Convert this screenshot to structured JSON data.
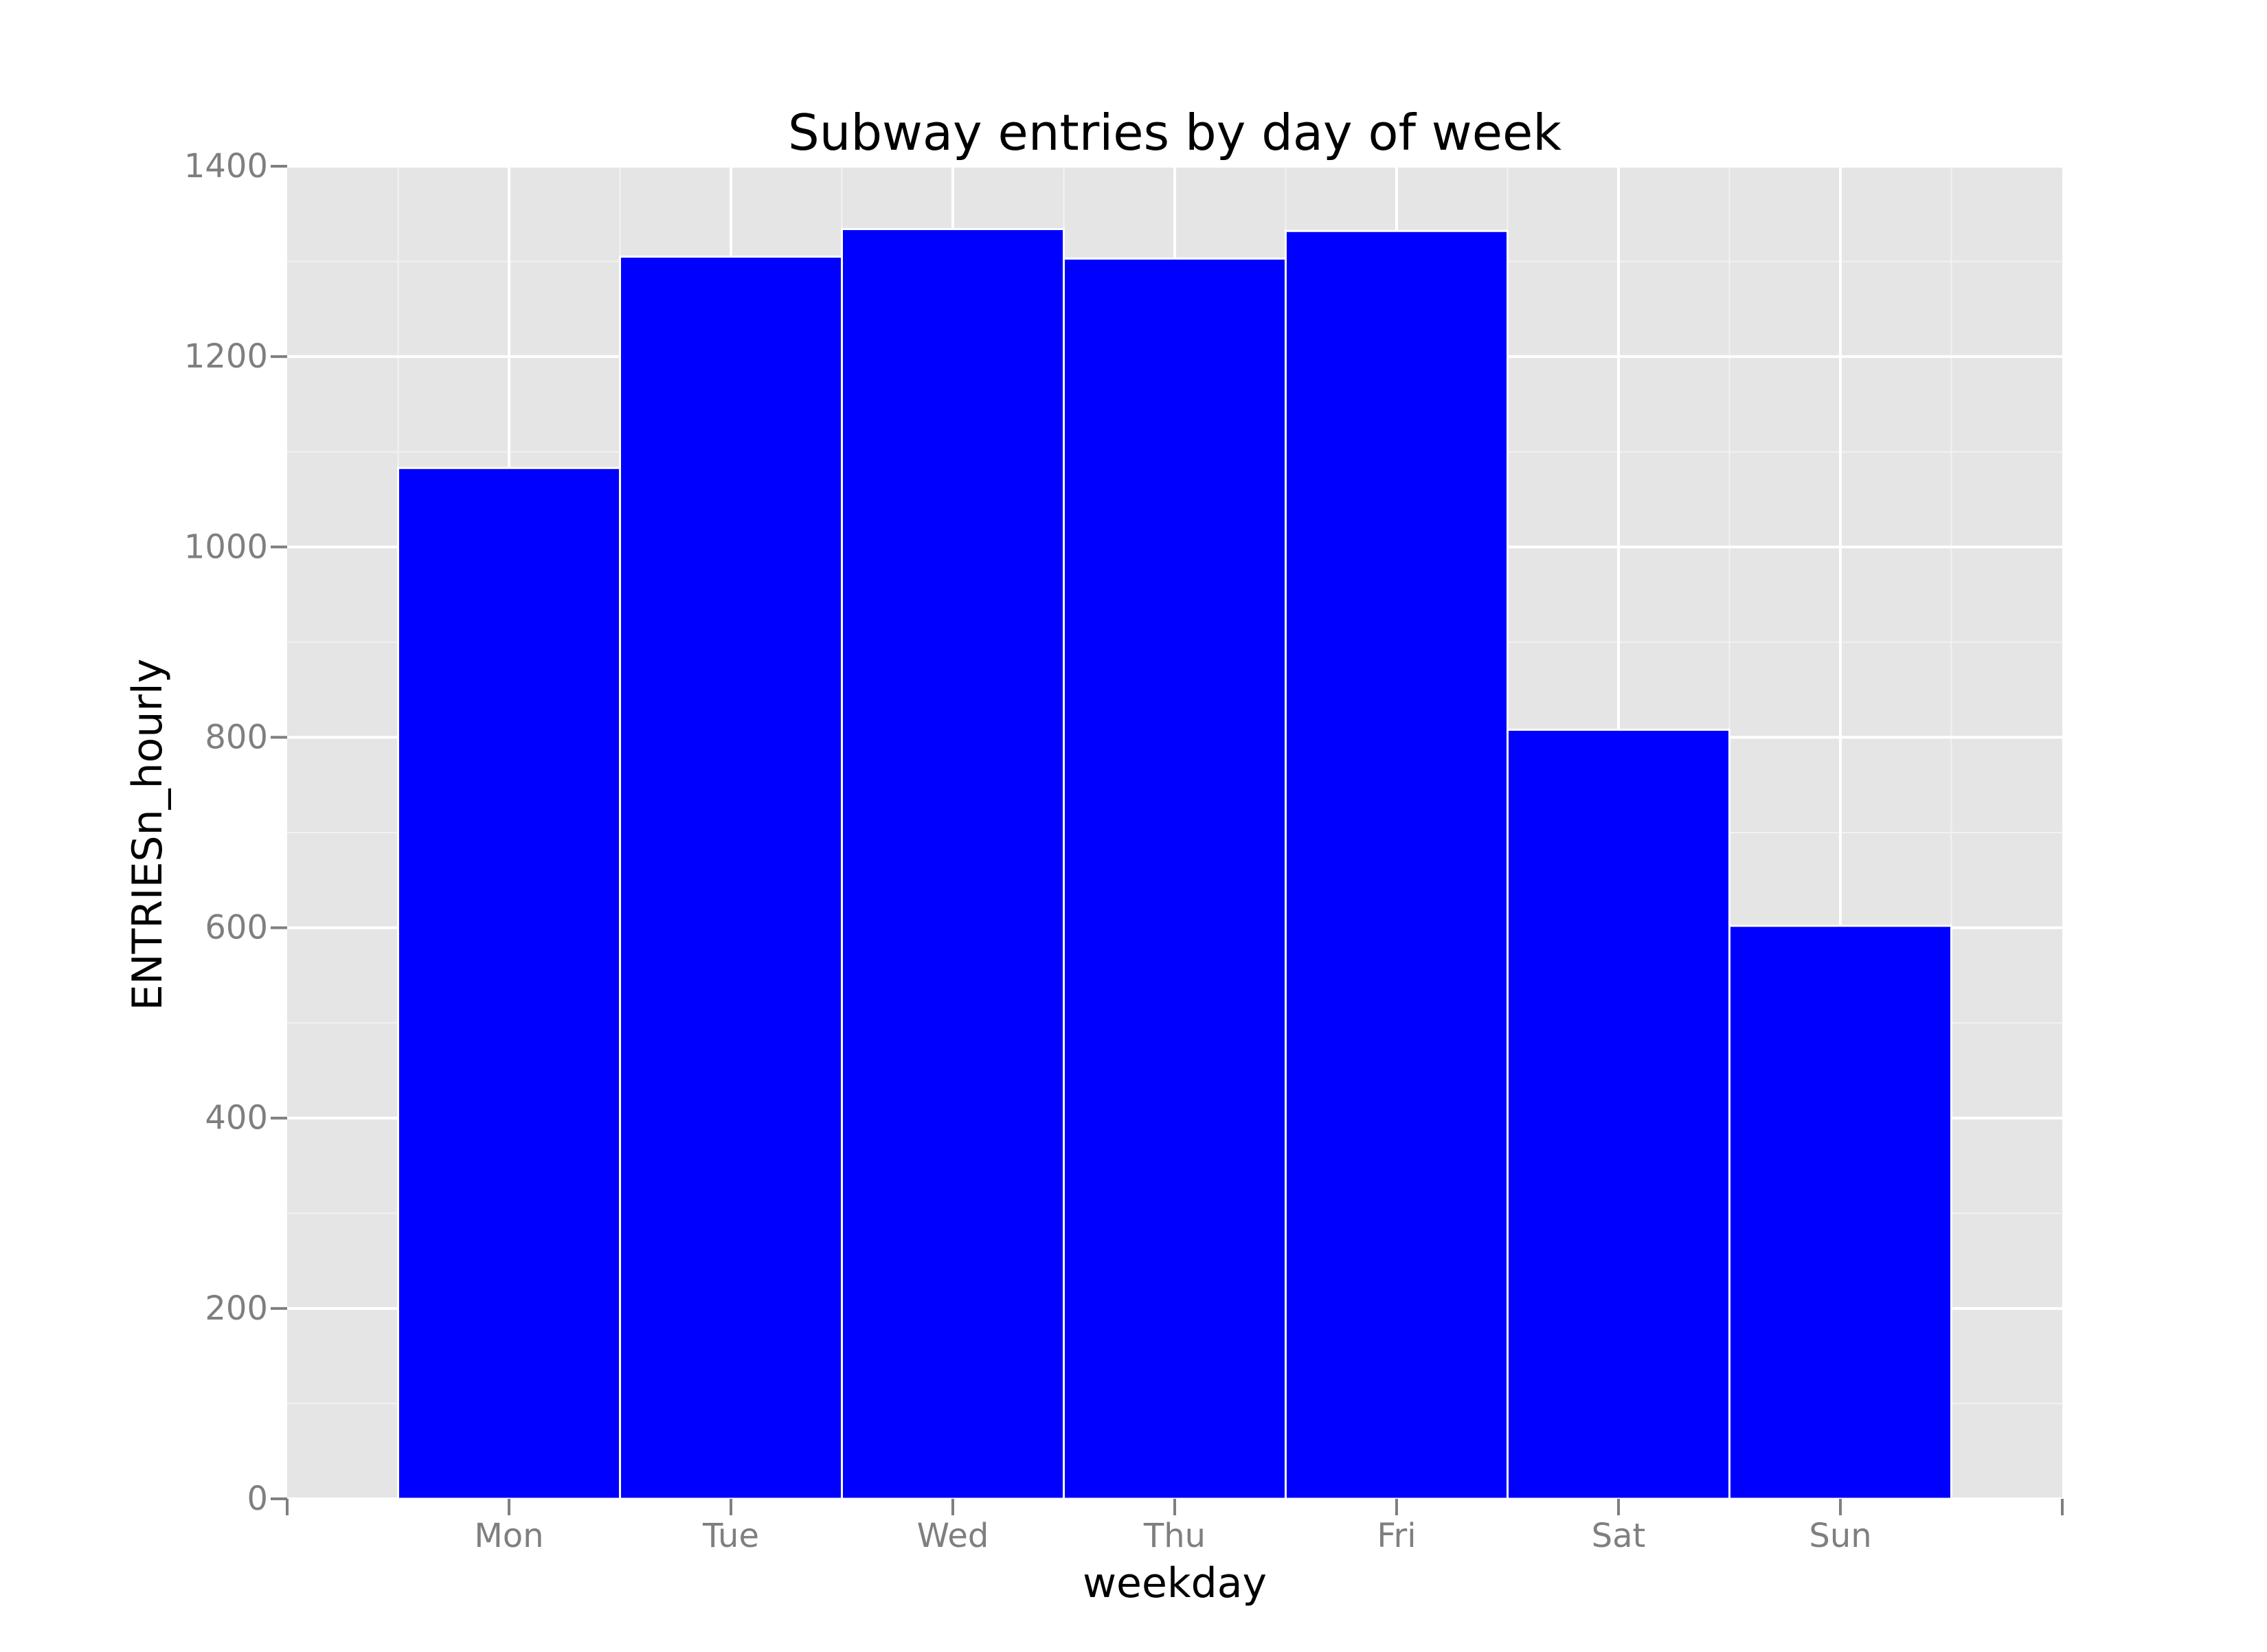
{
  "chart_data": {
    "type": "bar",
    "title": "Subway entries by day of week",
    "xlabel": "weekday",
    "ylabel": "ENTRIESn_hourly",
    "categories": [
      "Mon",
      "Tue",
      "Wed",
      "Thu",
      "Fri",
      "Sat",
      "Sun"
    ],
    "values": [
      1083,
      1305,
      1334,
      1303,
      1332,
      808,
      602
    ],
    "ylim": [
      0,
      1400
    ],
    "yticks": [
      0,
      200,
      400,
      600,
      800,
      1000,
      1200,
      1400
    ],
    "ytick_labels": [
      "0",
      "200",
      "400",
      "600",
      "800",
      "1000",
      "1200",
      "1400"
    ],
    "grid": true,
    "legend": "none",
    "colors": {
      "bar_fill": "#0000ff",
      "bar_edge": "#ffffff",
      "panel_bg": "#e5e5e5",
      "major_grid": "#ffffff",
      "minor_grid": "#f2f2f2",
      "tick_text": "#7f7f7f",
      "axis_line": "#7f7f7f"
    }
  }
}
